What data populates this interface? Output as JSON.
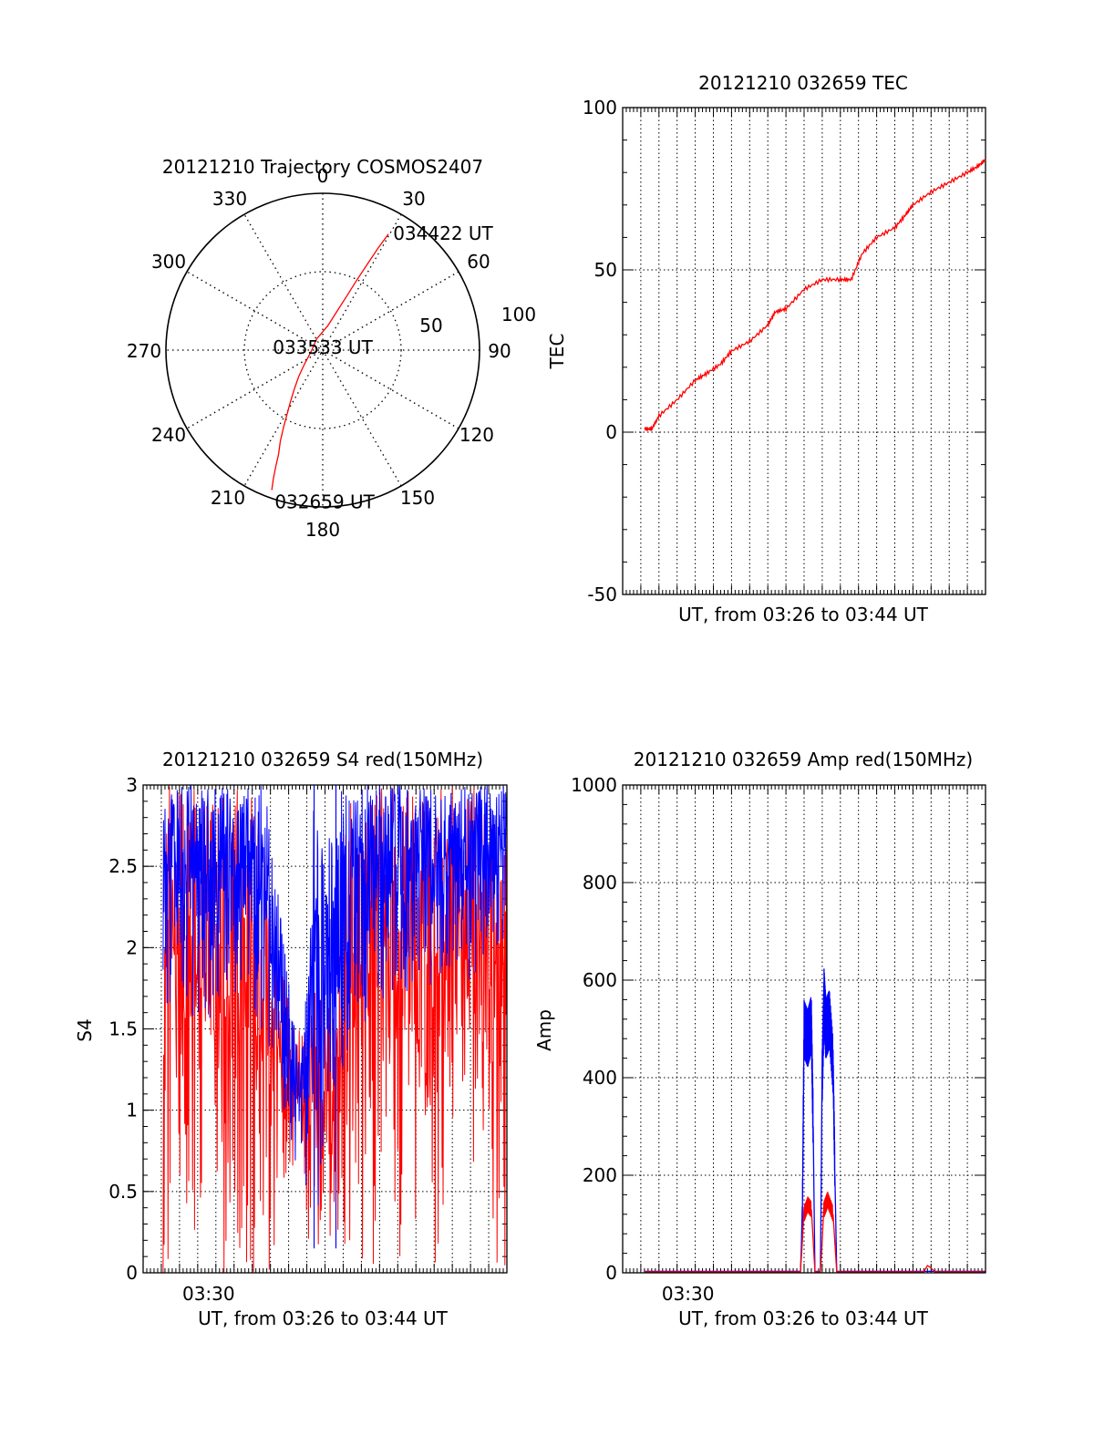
{
  "chart_data": [
    {
      "id": "trajectory",
      "type": "polar",
      "title": "20121210 Trajectory COSMOS2407",
      "angle_labels": [
        "0",
        "30",
        "60",
        "90",
        "120",
        "150",
        "180",
        "210",
        "240",
        "270",
        "300",
        "330"
      ],
      "angle_values": [
        0,
        30,
        60,
        90,
        120,
        150,
        180,
        210,
        240,
        270,
        300,
        330
      ],
      "radial_labels": [
        "50",
        "100"
      ],
      "radial_values": [
        50,
        100
      ],
      "rmax": 100,
      "grid": true,
      "series": [
        {
          "color": "#ff0000",
          "azimuth": [
            200,
            201,
            202,
            203,
            205,
            207,
            209,
            212,
            216,
            222,
            232,
            270,
            330,
            12,
            20,
            24,
            26,
            27.5,
            28.5,
            29.5
          ],
          "radius": [
            95,
            88,
            80,
            72,
            64,
            55,
            47,
            39,
            31,
            23,
            15,
            7,
            8,
            16,
            26,
            38,
            50,
            62,
            74,
            85
          ]
        }
      ],
      "annotations": [
        {
          "text": "034422 UT",
          "azimuth": 29.5,
          "radius": 85
        },
        {
          "text": "033533 UT",
          "azimuth": 0,
          "radius": 0
        },
        {
          "text": "032659 UT",
          "azimuth": 200,
          "radius": 95
        }
      ]
    },
    {
      "id": "tec",
      "type": "line",
      "title": "20121210 032659 TEC",
      "xlabel": "UT, from 03:26 to 03:44 UT",
      "ylabel": "TEC",
      "ylim": [
        -50,
        100
      ],
      "yticks": [
        -50,
        0,
        50,
        100
      ],
      "xlim": [
        0,
        1
      ],
      "grid": true,
      "series": [
        {
          "color": "#ff0000",
          "x": [
            0.06,
            0.08,
            0.1,
            0.15,
            0.2,
            0.23,
            0.27,
            0.3,
            0.35,
            0.4,
            0.42,
            0.45,
            0.5,
            0.55,
            0.6,
            0.63,
            0.66,
            0.7,
            0.75,
            0.78,
            0.8,
            0.85,
            0.9,
            0.95,
            0.98,
            1.0
          ],
          "y": [
            1,
            1,
            5,
            10,
            16,
            18,
            21,
            25,
            28,
            33,
            37,
            38,
            44,
            47,
            47,
            47,
            55,
            60,
            63,
            67,
            70,
            74,
            77,
            80,
            82,
            84
          ]
        }
      ]
    },
    {
      "id": "s4",
      "type": "line",
      "title": "20121210 032659 S4 red(150MHz)",
      "xlabel": "UT, from 03:26 to 03:44 UT",
      "ylabel": "S4",
      "ylim": [
        0,
        3
      ],
      "yticks": [
        0,
        0.5,
        1,
        1.5,
        2,
        2.5,
        3
      ],
      "ytick_labels": [
        "0",
        "0.5",
        "1",
        "1.5",
        "2",
        "2.5",
        "3"
      ],
      "xlim": [
        0,
        1
      ],
      "xticks": [
        {
          "x": 0.18,
          "label": "03:30"
        }
      ],
      "grid": true,
      "series": [
        {
          "color": "#ff0000",
          "envelope": [
            [
              0.0,
              0.0,
              0.0
            ],
            [
              0.01,
              0.0,
              3.0
            ],
            [
              0.05,
              0.0,
              3.0
            ],
            [
              0.1,
              0.0,
              3.0
            ],
            [
              0.15,
              0.0,
              3.0
            ],
            [
              0.2,
              0.0,
              3.0
            ],
            [
              0.25,
              0.0,
              3.0
            ],
            [
              0.3,
              0.0,
              3.0
            ],
            [
              0.34,
              0.0,
              2.6
            ],
            [
              0.38,
              0.0,
              2.0
            ],
            [
              0.41,
              0.6,
              1.5
            ],
            [
              0.44,
              0.3,
              1.7
            ],
            [
              0.48,
              0.0,
              1.8
            ],
            [
              0.52,
              0.0,
              1.6
            ],
            [
              0.55,
              0.0,
              3.0
            ],
            [
              0.6,
              0.0,
              3.0
            ],
            [
              0.65,
              0.0,
              3.0
            ],
            [
              0.7,
              0.0,
              3.0
            ],
            [
              0.75,
              0.0,
              3.0
            ],
            [
              0.8,
              0.0,
              3.0
            ],
            [
              0.85,
              0.5,
              3.0
            ],
            [
              0.9,
              0.8,
              3.0
            ],
            [
              0.95,
              0.0,
              3.0
            ],
            [
              1.0,
              0.0,
              3.0
            ]
          ]
        },
        {
          "color": "#0000ff",
          "envelope": [
            [
              0.0,
              1.5,
              3.0
            ],
            [
              0.05,
              1.6,
              3.0
            ],
            [
              0.1,
              1.7,
              3.0
            ],
            [
              0.15,
              1.5,
              3.0
            ],
            [
              0.2,
              1.6,
              3.0
            ],
            [
              0.25,
              1.7,
              3.0
            ],
            [
              0.3,
              1.6,
              3.0
            ],
            [
              0.34,
              1.4,
              3.0
            ],
            [
              0.38,
              1.0,
              2.2
            ],
            [
              0.41,
              0.7,
              1.6
            ],
            [
              0.44,
              0.6,
              1.4
            ],
            [
              0.47,
              0.2,
              3.0
            ],
            [
              0.5,
              0.6,
              2.6
            ],
            [
              0.55,
              1.2,
              3.0
            ],
            [
              0.6,
              1.5,
              3.0
            ],
            [
              0.65,
              1.5,
              3.0
            ],
            [
              0.7,
              1.6,
              3.0
            ],
            [
              0.75,
              1.8,
              3.0
            ],
            [
              0.8,
              1.7,
              3.0
            ],
            [
              0.85,
              1.9,
              3.0
            ],
            [
              0.9,
              1.8,
              3.0
            ],
            [
              0.95,
              1.9,
              3.0
            ],
            [
              1.0,
              2.0,
              3.0
            ]
          ],
          "spikes": [
            [
              0.47,
              0.15
            ],
            [
              0.53,
              0.15
            ]
          ]
        }
      ]
    },
    {
      "id": "amp",
      "type": "line",
      "title": "20121210 032659 Amp red(150MHz)",
      "xlabel": "UT, from 03:26 to 03:44 UT",
      "ylabel": "Amp",
      "ylim": [
        0,
        1000
      ],
      "yticks": [
        0,
        200,
        400,
        600,
        800,
        1000
      ],
      "xlim": [
        0,
        1
      ],
      "xticks": [
        {
          "x": 0.18,
          "label": "03:30"
        }
      ],
      "grid": true,
      "series": [
        {
          "color": "#0000ff",
          "x": [
            0.06,
            0.49,
            0.495,
            0.5,
            0.51,
            0.52,
            0.525,
            0.53,
            0.545,
            0.55,
            0.555,
            0.56,
            0.57,
            0.58,
            0.585,
            0.59,
            1.0
          ],
          "y": [
            3,
            3,
            100,
            500,
            480,
            510,
            300,
            3,
            3,
            400,
            560,
            500,
            520,
            420,
            200,
            3,
            3
          ]
        },
        {
          "color": "#ff0000",
          "x": [
            0.06,
            0.49,
            0.5,
            0.51,
            0.52,
            0.53,
            0.545,
            0.555,
            0.565,
            0.58,
            0.59,
            0.83,
            0.84,
            0.85,
            0.86,
            1.0
          ],
          "y": [
            2,
            2,
            120,
            140,
            130,
            2,
            2,
            130,
            150,
            120,
            2,
            2,
            15,
            10,
            2,
            2
          ]
        }
      ]
    }
  ]
}
